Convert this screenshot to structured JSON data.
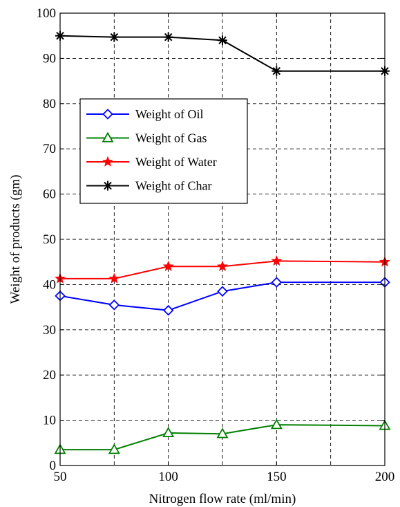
{
  "chart_data": {
    "type": "line",
    "title": "",
    "xlabel": "Nitrogen flow rate (ml/min)",
    "ylabel": "Weight of products (gm)",
    "xlim": [
      50,
      200
    ],
    "ylim": [
      0,
      100
    ],
    "x_ticks": [
      50,
      100,
      150,
      200
    ],
    "y_ticks": [
      0,
      10,
      20,
      30,
      40,
      50,
      60,
      70,
      80,
      90,
      100
    ],
    "x_grid": [
      50,
      75,
      100,
      125,
      150,
      175,
      200
    ],
    "grid": true,
    "grid_style": "dashed",
    "legend_position": "upper-left",
    "x": [
      50,
      75,
      100,
      125,
      150,
      200
    ],
    "series": [
      {
        "name": "Weight of Oil",
        "color": "#0000ff",
        "marker": "diamond",
        "values": [
          37.5,
          35.5,
          34.3,
          38.5,
          40.5,
          40.5
        ]
      },
      {
        "name": "Weight of Gas",
        "color": "#008000",
        "marker": "triangle",
        "values": [
          3.5,
          3.5,
          7.2,
          7.0,
          9.0,
          8.8
        ]
      },
      {
        "name": "Weight of Water",
        "color": "#ff0000",
        "marker": "star",
        "values": [
          41.3,
          41.3,
          44.0,
          44.0,
          45.2,
          45.0
        ]
      },
      {
        "name": "Weight of Char",
        "color": "#000000",
        "marker": "asterisk",
        "values": [
          95.0,
          94.7,
          94.7,
          94.0,
          87.2,
          87.2
        ]
      }
    ]
  }
}
